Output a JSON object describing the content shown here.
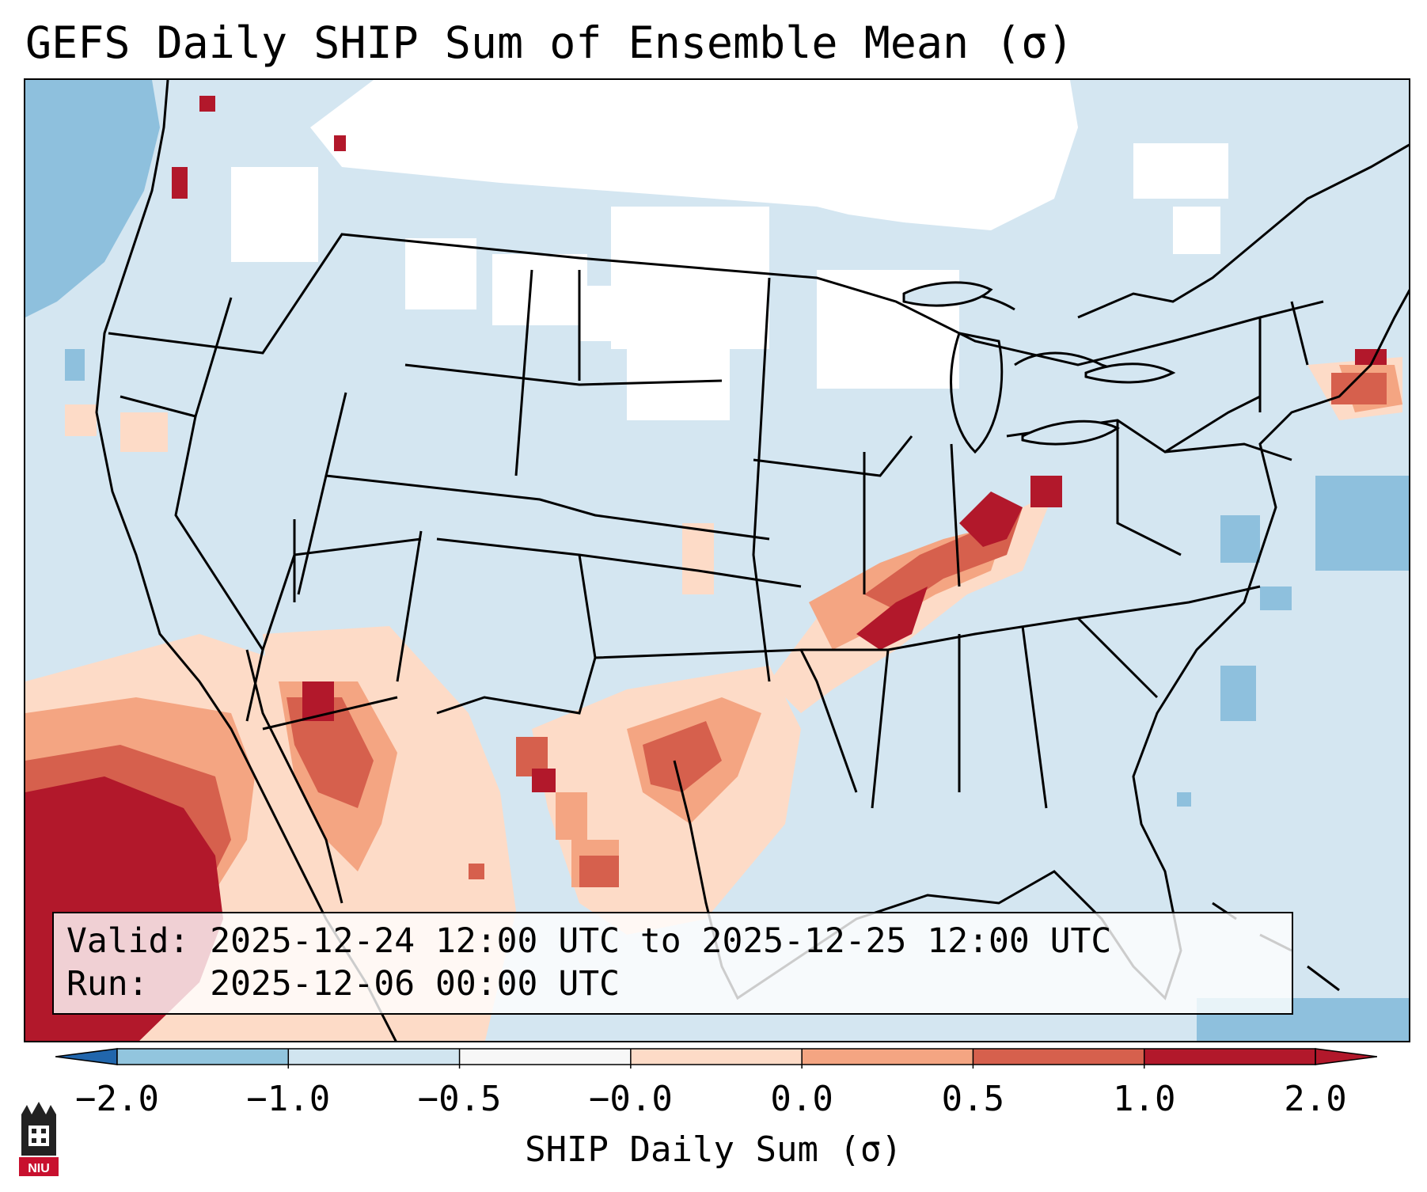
{
  "title": "GEFS Daily SHIP Sum of Ensemble Mean (σ)",
  "info": {
    "valid_label": "Valid:",
    "valid_text": "2025-12-24 12:00 UTC to 2025-12-25 12:00 UTC",
    "run_label": "Run:",
    "run_text": "2025-12-06 00:00 UTC"
  },
  "colorbar": {
    "label": "SHIP Daily Sum (σ)",
    "ticks": [
      "−2.0",
      "−1.0",
      "−0.5",
      "−0.0",
      "0.0",
      "0.5",
      "1.0",
      "2.0"
    ],
    "colors": [
      "#4393c3",
      "#92c5de",
      "#d1e5f0",
      "#f7f7f7",
      "#fddbc7",
      "#f4a582",
      "#d6604d",
      "#b2182b"
    ]
  },
  "map": {
    "background_color": "#d4e6f1",
    "region": "CONUS"
  },
  "logo": {
    "text": "NIU"
  }
}
